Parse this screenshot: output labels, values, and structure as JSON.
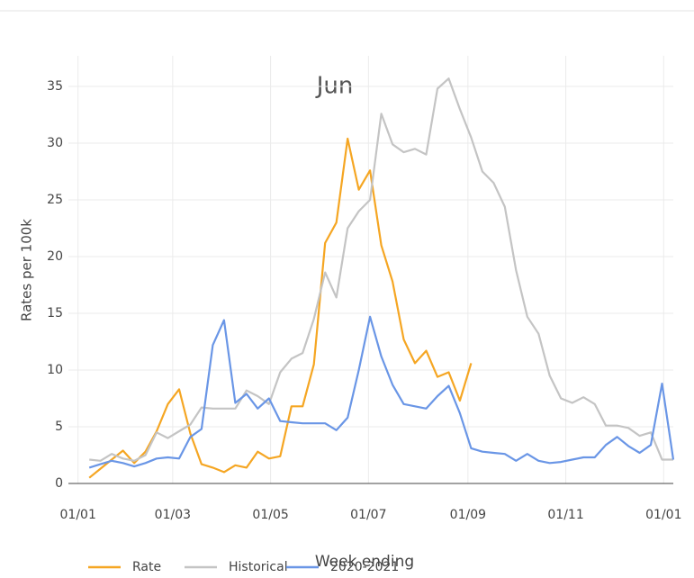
{
  "chart_data": {
    "type": "line",
    "annotation": "Jun",
    "x_label": "Week ending",
    "y_label": "Rates per 100k",
    "x": [
      7,
      14,
      21,
      28,
      35,
      42,
      49,
      56,
      63,
      70,
      77,
      84,
      91,
      98,
      105,
      112,
      119,
      126,
      133,
      140,
      147,
      154,
      161,
      168,
      175,
      182,
      189,
      196,
      203,
      210,
      217,
      224,
      231,
      238,
      245,
      252,
      259,
      266,
      273,
      280,
      287,
      294,
      301,
      308,
      315,
      322,
      329,
      336,
      343,
      350,
      357,
      364,
      371
    ],
    "xlim": [
      -6,
      371
    ],
    "xticks": [
      {
        "value": 0,
        "label": "01/01"
      },
      {
        "value": 59,
        "label": "01/03"
      },
      {
        "value": 120,
        "label": "01/05"
      },
      {
        "value": 181,
        "label": "01/07"
      },
      {
        "value": 243,
        "label": "01/09"
      },
      {
        "value": 304,
        "label": "01/11"
      },
      {
        "value": 365,
        "label": "01/01"
      }
    ],
    "ylim": [
      0,
      37.7
    ],
    "yticks": [
      0,
      5,
      10,
      15,
      20,
      25,
      30,
      35
    ],
    "grid": true,
    "legend": "bottom",
    "series": [
      {
        "name": "Rate",
        "color": "#f5a623",
        "values": [
          0.5,
          1.3,
          2.1,
          2.9,
          1.8,
          2.8,
          4.6,
          7.0,
          8.3,
          4.4,
          1.7,
          1.4,
          1.0,
          1.6,
          1.4,
          2.8,
          2.2,
          2.4,
          6.8,
          6.8,
          10.5,
          21.2,
          23.0,
          30.4,
          25.9,
          27.6,
          21.0,
          17.8,
          12.7,
          10.6,
          11.7,
          9.4,
          9.8,
          7.3,
          10.6,
          null,
          null,
          null,
          null,
          null,
          null,
          null,
          null,
          null,
          null,
          null,
          null,
          null,
          null,
          null,
          null,
          null,
          null
        ]
      },
      {
        "name": "Historical",
        "color": "#c4c4c4",
        "values": [
          2.1,
          2.0,
          2.6,
          2.2,
          2.0,
          2.5,
          4.5,
          4.0,
          4.6,
          5.2,
          6.7,
          6.6,
          6.6,
          6.6,
          8.2,
          7.7,
          7.0,
          9.8,
          11.0,
          11.5,
          14.5,
          18.6,
          16.4,
          22.5,
          24.0,
          25.0,
          32.6,
          29.9,
          29.2,
          29.5,
          29.0,
          34.8,
          35.7,
          33.0,
          30.5,
          27.5,
          26.5,
          24.4,
          18.8,
          14.7,
          13.2,
          9.5,
          7.5,
          7.1,
          7.6,
          7.0,
          5.1,
          5.1,
          4.9,
          4.2,
          4.5,
          2.1,
          2.1
        ]
      },
      {
        "name": "2020-2021",
        "color": "#6a96e6",
        "values": [
          1.4,
          1.7,
          2.0,
          1.8,
          1.5,
          1.8,
          2.2,
          2.3,
          2.2,
          4.1,
          4.8,
          12.2,
          14.4,
          7.1,
          7.9,
          6.6,
          7.5,
          5.5,
          5.4,
          5.3,
          5.3,
          5.3,
          4.7,
          5.8,
          10.0,
          14.7,
          11.2,
          8.7,
          7.0,
          6.8,
          6.6,
          7.7,
          8.6,
          6.2,
          3.1,
          2.8,
          2.7,
          2.6,
          2.0,
          2.6,
          2.0,
          1.8,
          1.9,
          2.1,
          2.3,
          2.3,
          3.4,
          4.1,
          3.3,
          2.7,
          3.4,
          8.8,
          2.1
        ]
      }
    ]
  }
}
